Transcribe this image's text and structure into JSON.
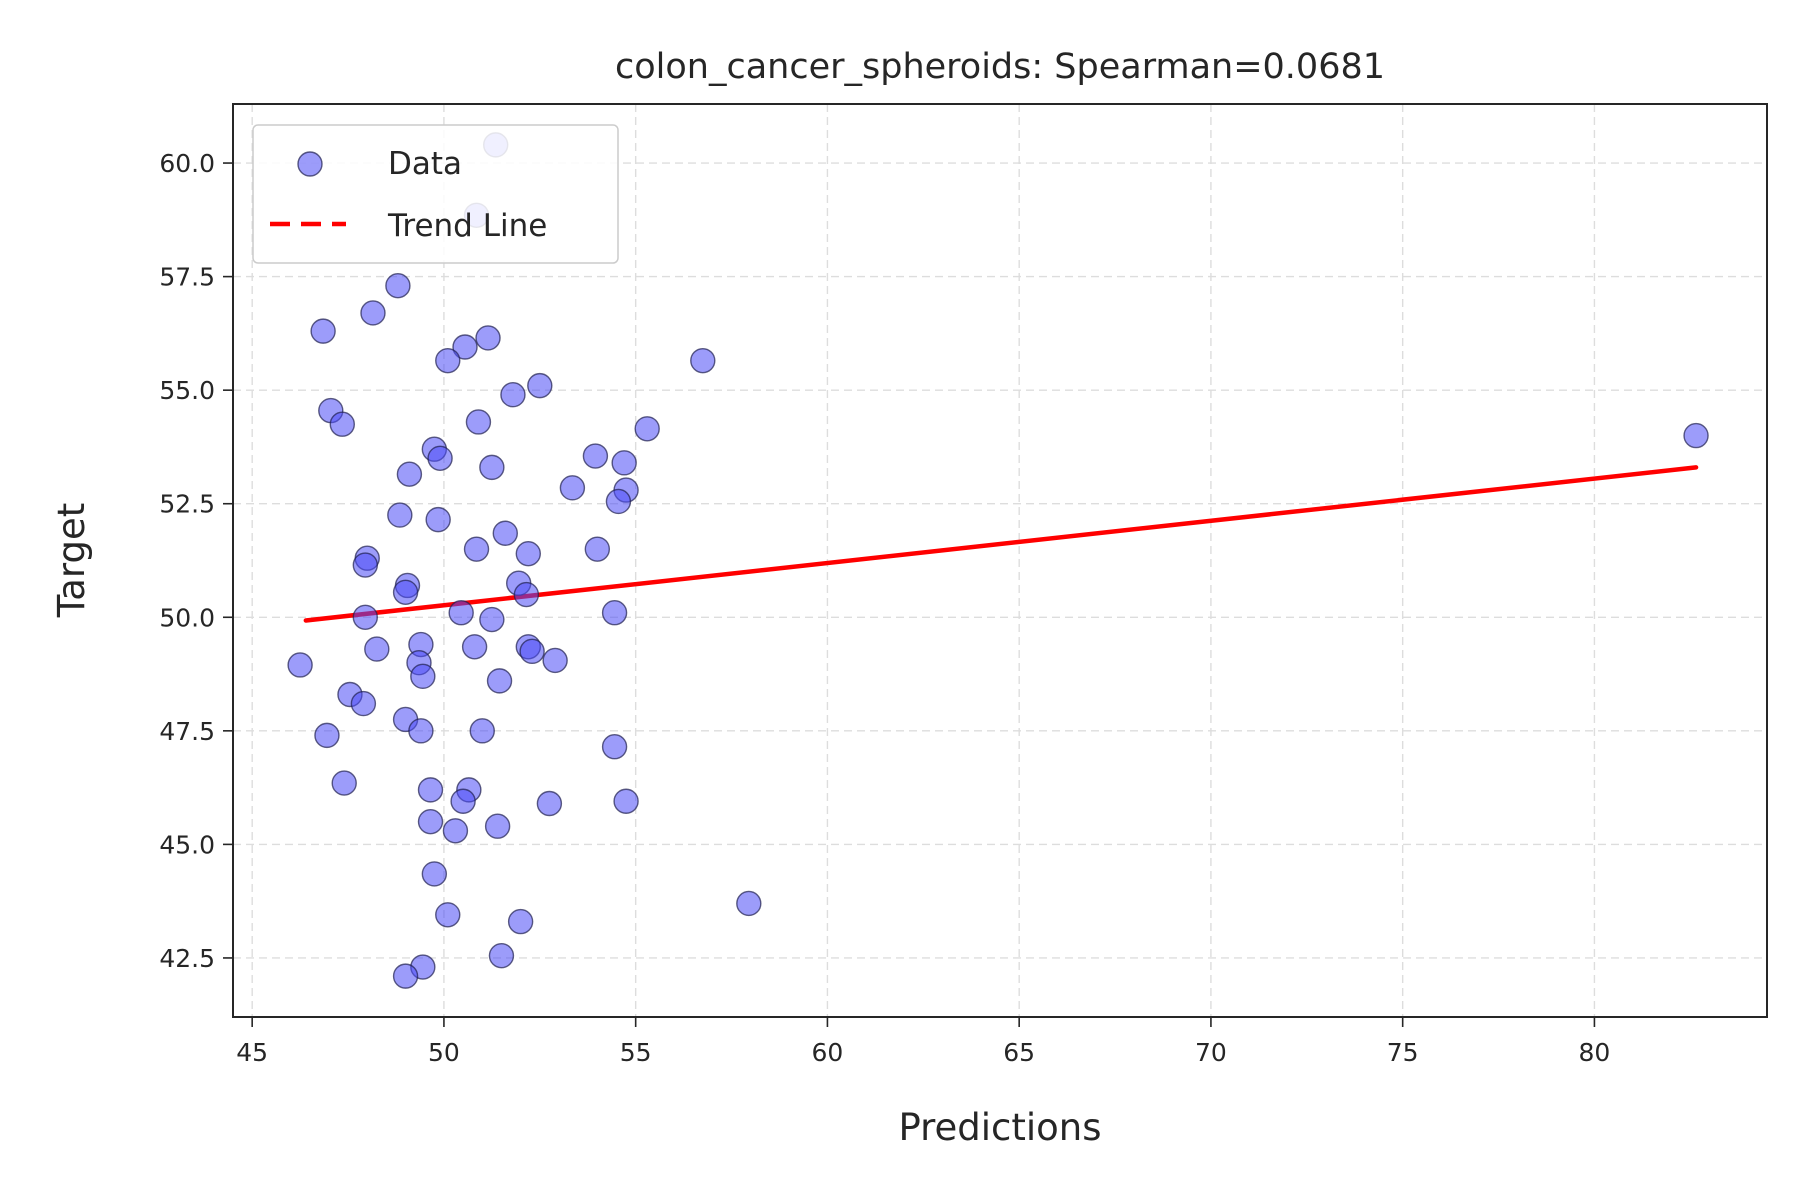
{
  "chart_data": {
    "type": "scatter",
    "title": "colon_cancer_spheroids: Spearman=0.0681",
    "xlabel": "Predictions",
    "ylabel": "Target",
    "xlim": [
      44.5,
      84.5
    ],
    "ylim": [
      41.2,
      61.3
    ],
    "xticks": [
      45,
      50,
      55,
      60,
      65,
      70,
      75,
      80
    ],
    "xtick_labels": [
      "45",
      "50",
      "55",
      "60",
      "65",
      "70",
      "75",
      "80"
    ],
    "yticks": [
      42.5,
      45.0,
      47.5,
      50.0,
      52.5,
      55.0,
      57.5,
      60.0
    ],
    "ytick_labels": [
      "42.5",
      "45.0",
      "47.5",
      "50.0",
      "52.5",
      "55.0",
      "57.5",
      "60.0"
    ],
    "grid": true,
    "legend_position": "top-left",
    "colors": {
      "points": "#4b4bf5",
      "trend": "#ff0000",
      "axes": "#262626",
      "grid": "#dddddd"
    },
    "series": [
      {
        "name": "Data",
        "kind": "scatter",
        "points": [
          [
            51.35,
            60.4
          ],
          [
            50.85,
            58.85
          ],
          [
            48.8,
            57.3
          ],
          [
            48.15,
            56.7
          ],
          [
            46.85,
            56.3
          ],
          [
            51.15,
            56.15
          ],
          [
            50.55,
            55.95
          ],
          [
            50.1,
            55.65
          ],
          [
            52.5,
            55.1
          ],
          [
            51.8,
            54.9
          ],
          [
            56.75,
            55.65
          ],
          [
            47.05,
            54.55
          ],
          [
            47.35,
            54.25
          ],
          [
            50.9,
            54.3
          ],
          [
            55.3,
            54.15
          ],
          [
            49.75,
            53.7
          ],
          [
            49.9,
            53.5
          ],
          [
            53.95,
            53.55
          ],
          [
            54.7,
            53.4
          ],
          [
            49.1,
            53.15
          ],
          [
            51.25,
            53.3
          ],
          [
            53.35,
            52.85
          ],
          [
            54.75,
            52.8
          ],
          [
            54.55,
            52.55
          ],
          [
            48.85,
            52.25
          ],
          [
            49.85,
            52.15
          ],
          [
            51.6,
            51.85
          ],
          [
            50.85,
            51.5
          ],
          [
            52.2,
            51.4
          ],
          [
            54.0,
            51.5
          ],
          [
            48.0,
            51.3
          ],
          [
            47.95,
            51.15
          ],
          [
            49.05,
            50.7
          ],
          [
            49.0,
            50.55
          ],
          [
            51.95,
            50.75
          ],
          [
            52.15,
            50.5
          ],
          [
            47.95,
            50.0
          ],
          [
            50.45,
            50.1
          ],
          [
            51.25,
            49.95
          ],
          [
            54.45,
            50.1
          ],
          [
            49.4,
            49.4
          ],
          [
            50.8,
            49.35
          ],
          [
            52.2,
            49.35
          ],
          [
            52.3,
            49.25
          ],
          [
            52.9,
            49.05
          ],
          [
            48.25,
            49.3
          ],
          [
            46.25,
            48.95
          ],
          [
            49.35,
            49.0
          ],
          [
            49.45,
            48.7
          ],
          [
            51.45,
            48.6
          ],
          [
            47.55,
            48.3
          ],
          [
            47.9,
            48.1
          ],
          [
            49.0,
            47.75
          ],
          [
            49.4,
            47.5
          ],
          [
            51.0,
            47.5
          ],
          [
            46.95,
            47.4
          ],
          [
            54.45,
            47.15
          ],
          [
            47.4,
            46.35
          ],
          [
            49.65,
            46.2
          ],
          [
            50.65,
            46.2
          ],
          [
            50.5,
            45.95
          ],
          [
            52.75,
            45.9
          ],
          [
            54.75,
            45.95
          ],
          [
            49.65,
            45.5
          ],
          [
            50.3,
            45.3
          ],
          [
            51.4,
            45.4
          ],
          [
            49.75,
            44.35
          ],
          [
            57.95,
            43.7
          ],
          [
            50.1,
            43.45
          ],
          [
            52.0,
            43.3
          ],
          [
            51.5,
            42.55
          ],
          [
            49.45,
            42.3
          ],
          [
            49.0,
            42.1
          ],
          [
            82.65,
            54.0
          ]
        ]
      },
      {
        "name": "Trend Line",
        "kind": "line",
        "style": "dashed",
        "x": [
          46.4,
          82.65
        ],
        "y": [
          49.93,
          53.3
        ]
      }
    ]
  }
}
